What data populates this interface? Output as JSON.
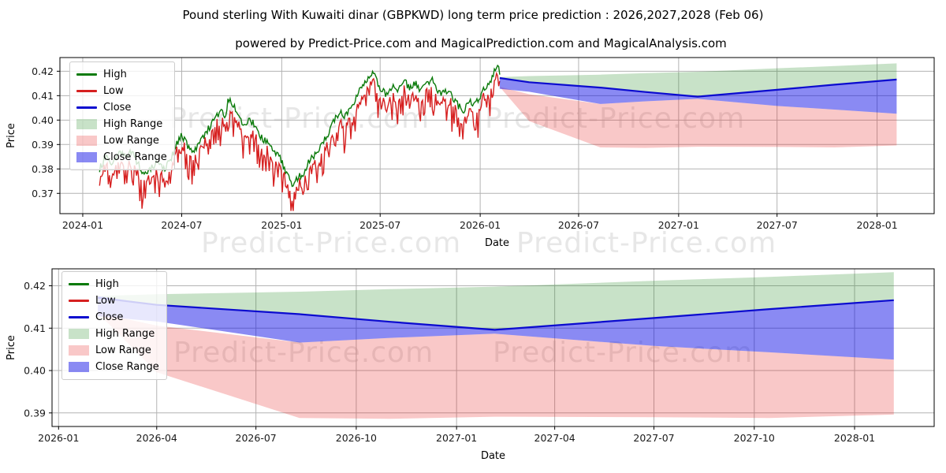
{
  "figure": {
    "title": "Pound sterling With Kuwaiti dinar (GBPKWD) long term price prediction : 2026,2027,2028 (Feb 06)",
    "subtitle": "powered by Predict-Price.com and MagicalPrediction.com and MagicalAnalysis.com",
    "watermark": "Predict-Price.com"
  },
  "colors": {
    "high": "#0a7a0a",
    "low": "#d62020",
    "close": "#0b0bcf",
    "high_range_fill": "rgba(34,139,34,0.25)",
    "low_range_fill": "rgba(230,26,26,0.24)",
    "close_range_fill": "rgba(10,10,230,0.48)",
    "grid": "#b3b3b3",
    "spine": "#000000",
    "tick_text": "#1a1a1a"
  },
  "legend": {
    "entries": [
      {
        "label": "High",
        "type": "line",
        "color_key": "high"
      },
      {
        "label": "Low",
        "type": "line",
        "color_key": "low"
      },
      {
        "label": "Close",
        "type": "line",
        "color_key": "close"
      },
      {
        "label": "High Range",
        "type": "patch",
        "color_key": "high_range_fill"
      },
      {
        "label": "Low Range",
        "type": "patch",
        "color_key": "low_range_fill"
      },
      {
        "label": "Close Range",
        "type": "patch",
        "color_key": "close_range_fill"
      }
    ]
  },
  "axes": {
    "top": {
      "ylabel": "Price",
      "xlabel": "Date",
      "yticks": [
        0.37,
        0.38,
        0.39,
        0.4,
        0.41,
        0.42
      ],
      "xticks": [
        "2024-01",
        "2024-07",
        "2025-01",
        "2025-07",
        "2026-01",
        "2026-07",
        "2027-01",
        "2027-07",
        "2028-01"
      ],
      "xlim": [
        "2023-11-20",
        "2028-04-15"
      ],
      "ylim": [
        0.3617,
        0.4256
      ],
      "grid": true
    },
    "bottom": {
      "ylabel": "Price",
      "xlabel": "Date",
      "yticks": [
        0.39,
        0.4,
        0.41,
        0.42
      ],
      "xticks": [
        "2026-01",
        "2026-04",
        "2026-07",
        "2026-10",
        "2027-01",
        "2027-04",
        "2027-07",
        "2027-10",
        "2028-01"
      ],
      "xlim": [
        "2025-12-26",
        "2028-03-14"
      ],
      "ylim": [
        0.3868,
        0.424
      ],
      "grid": true
    }
  },
  "chart_data": {
    "type": "line",
    "title": "GBPKWD long term price prediction",
    "series_names": [
      "High",
      "Low",
      "Close",
      "High Range",
      "Low Range",
      "Close Range"
    ],
    "historical": {
      "description": "Noisy daily High/Low history 2024-02 to 2026-02; values are monthly-scale anchors of the High envelope read from the plot",
      "anchor_dates": [
        "2024-02-01",
        "2024-02-12",
        "2024-02-24",
        "2024-03-08",
        "2024-03-20",
        "2024-04-01",
        "2024-04-12",
        "2024-04-24",
        "2024-05-06",
        "2024-05-18",
        "2024-05-30",
        "2024-06-11",
        "2024-06-23",
        "2024-07-01",
        "2024-07-13",
        "2024-07-25",
        "2024-08-06",
        "2024-08-18",
        "2024-08-30",
        "2024-09-11",
        "2024-09-19",
        "2024-09-25",
        "2024-10-03",
        "2024-10-15",
        "2024-10-24",
        "2024-11-02",
        "2024-11-12",
        "2024-11-22",
        "2024-12-04",
        "2024-12-16",
        "2024-12-28",
        "2025-01-08",
        "2025-01-20",
        "2025-01-30",
        "2025-02-10",
        "2025-02-20",
        "2025-03-04",
        "2025-03-16",
        "2025-03-28",
        "2025-04-08",
        "2025-04-18",
        "2025-04-28",
        "2025-05-08",
        "2025-05-18",
        "2025-05-28",
        "2025-06-08",
        "2025-06-17",
        "2025-06-26",
        "2025-07-06",
        "2025-07-16",
        "2025-07-26",
        "2025-08-05",
        "2025-08-15",
        "2025-08-25",
        "2025-09-04",
        "2025-09-14",
        "2025-09-24",
        "2025-10-04",
        "2025-10-14",
        "2025-10-24",
        "2025-11-03",
        "2025-11-13",
        "2025-11-23",
        "2025-12-03",
        "2025-12-13",
        "2025-12-23",
        "2026-01-02",
        "2026-01-12",
        "2026-01-22",
        "2026-02-01",
        "2026-02-06"
      ],
      "anchor_high": [
        0.38,
        0.3845,
        0.382,
        0.3865,
        0.385,
        0.387,
        0.382,
        0.3775,
        0.38,
        0.384,
        0.3795,
        0.384,
        0.391,
        0.3935,
        0.389,
        0.3875,
        0.392,
        0.396,
        0.4005,
        0.4035,
        0.4015,
        0.4085,
        0.406,
        0.402,
        0.397,
        0.3995,
        0.3985,
        0.393,
        0.391,
        0.3875,
        0.3855,
        0.379,
        0.3735,
        0.3765,
        0.3785,
        0.3835,
        0.386,
        0.3905,
        0.395,
        0.4005,
        0.4035,
        0.4015,
        0.4045,
        0.41,
        0.4145,
        0.4175,
        0.4195,
        0.4155,
        0.4115,
        0.4105,
        0.414,
        0.4125,
        0.4155,
        0.4135,
        0.4155,
        0.412,
        0.4145,
        0.4165,
        0.412,
        0.411,
        0.412,
        0.4085,
        0.4055,
        0.404,
        0.4075,
        0.4065,
        0.41,
        0.414,
        0.4165,
        0.4235,
        0.42
      ],
      "low_gap": {
        "base": 0.002,
        "shallow_max": 0.004,
        "spike_extra_max": 0.011,
        "min_price": 0.3628
      },
      "close_last": 0.4175,
      "extremes": {
        "min_low": 0.363,
        "max_high": 0.4235
      }
    },
    "prediction": {
      "description": "Forecast 2026-02-06 to 2028-02-06, piecewise linear",
      "dates": [
        "2026-02-06",
        "2026-04-01",
        "2026-08-10",
        "2026-11-01",
        "2027-02-05",
        "2027-07-01",
        "2027-10-15",
        "2028-02-06"
      ],
      "close": [
        0.4172,
        0.4155,
        0.4133,
        0.4115,
        0.4096,
        0.4124,
        0.4145,
        0.4166
      ],
      "high_range_top": [
        0.4176,
        0.418,
        0.4186,
        0.4192,
        0.4198,
        0.4212,
        0.4221,
        0.4232
      ],
      "close_range_top": [
        0.4176,
        0.4155,
        0.4133,
        0.4115,
        0.4096,
        0.4124,
        0.4145,
        0.4166
      ],
      "close_range_bottom": [
        0.4128,
        0.4116,
        0.4066,
        0.4077,
        0.4087,
        0.4058,
        0.4043,
        0.4026
      ],
      "low_range_top": [
        0.4136,
        0.4106,
        0.4066,
        0.4077,
        0.4087,
        0.4058,
        0.4043,
        0.4026
      ],
      "low_range_bottom": [
        0.4136,
        0.3996,
        0.3888,
        0.3886,
        0.3891,
        0.389,
        0.3888,
        0.3896
      ]
    }
  }
}
